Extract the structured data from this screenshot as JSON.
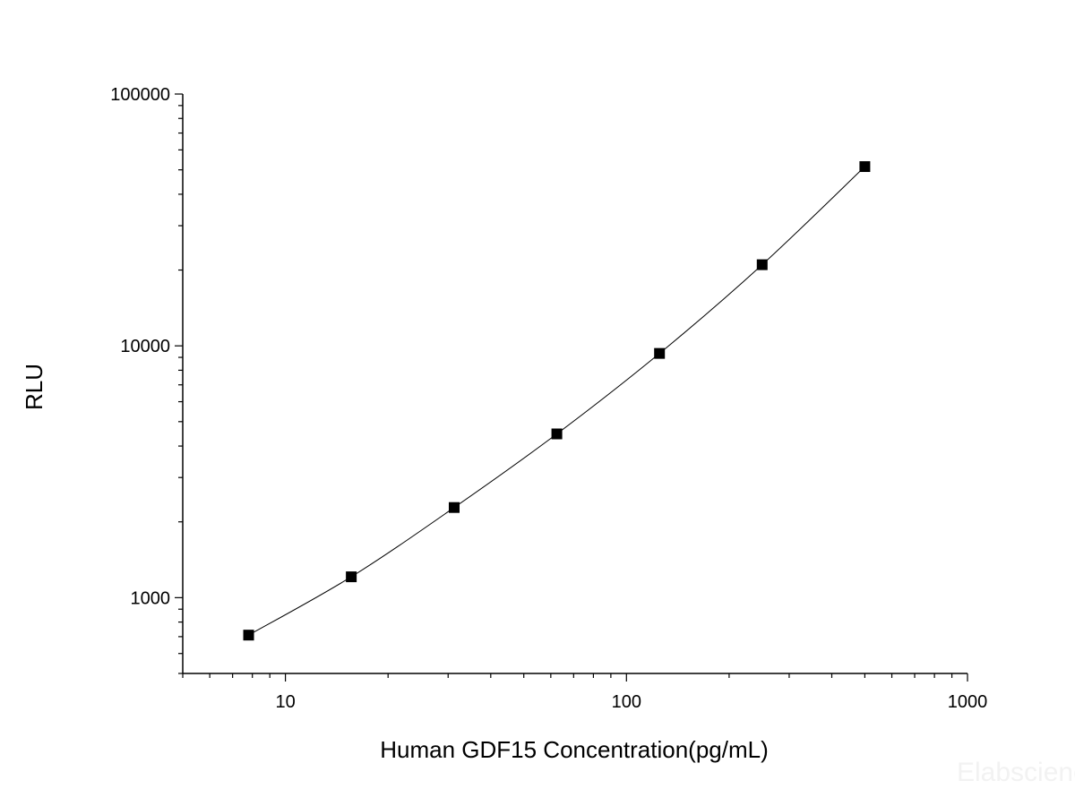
{
  "chart_data": {
    "type": "line",
    "xlabel": "Human GDF15 Concentration(pg/mL)",
    "ylabel": "RLU",
    "xscale": "log",
    "yscale": "log",
    "xlim": [
      5,
      1000
    ],
    "ylim": [
      500,
      100000
    ],
    "x_ticks": [
      10,
      100,
      1000
    ],
    "x_tick_labels": [
      "10",
      "100",
      "1000"
    ],
    "y_ticks": [
      1000,
      10000,
      100000
    ],
    "y_tick_labels": [
      "1000",
      "10000",
      "100000"
    ],
    "grid": false,
    "legend": "none",
    "marker": "square",
    "series": [
      {
        "x": [
          7.8,
          15.6,
          31.25,
          62.5,
          125,
          250,
          500
        ],
        "y": [
          710,
          1210,
          2280,
          4470,
          9330,
          21000,
          51500
        ]
      }
    ]
  },
  "watermark": "Elabscience",
  "colors": {
    "line": "#000000",
    "marker": "#000000",
    "axis": "#000000",
    "watermark": "#f2f2f2"
  }
}
